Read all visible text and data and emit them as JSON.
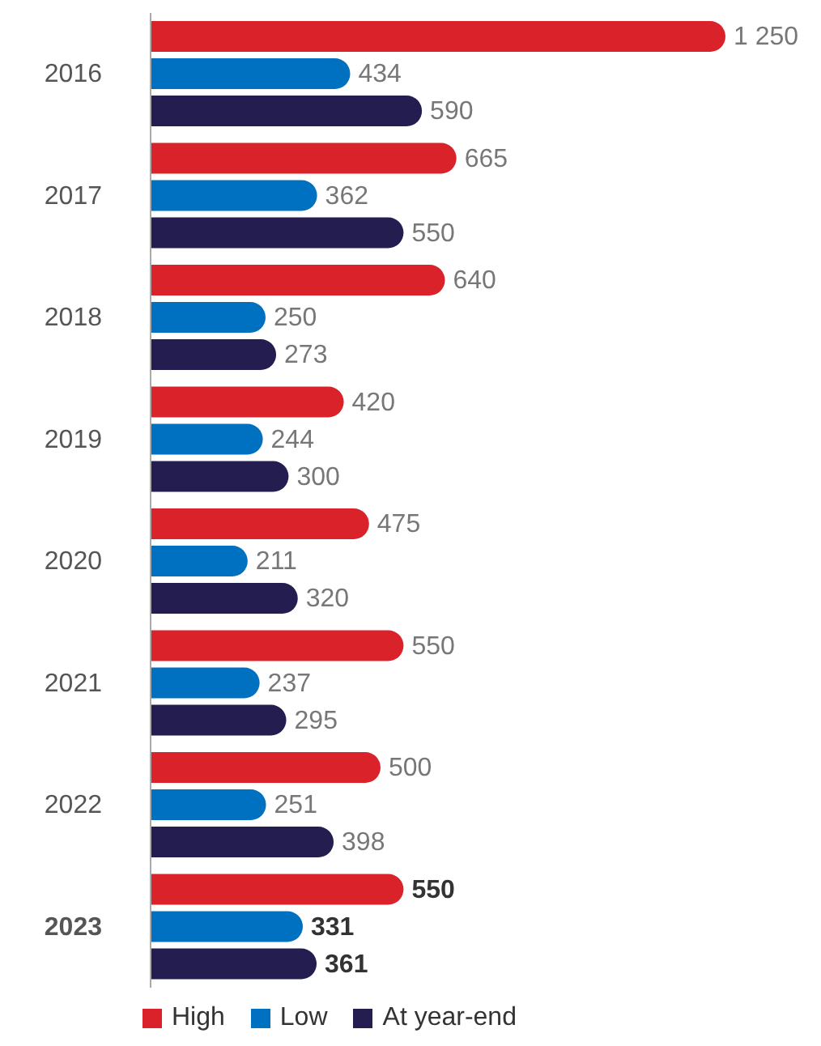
{
  "chart_data": {
    "type": "bar",
    "orientation": "horizontal",
    "categories": [
      "2016",
      "2017",
      "2018",
      "2019",
      "2020",
      "2021",
      "2022",
      "2023"
    ],
    "series": [
      {
        "name": "High",
        "color": "#d9222a",
        "values": [
          1250,
          665,
          640,
          420,
          475,
          550,
          500,
          550
        ],
        "value_labels": [
          "1 250",
          "665",
          "640",
          "420",
          "475",
          "550",
          "500",
          "550"
        ]
      },
      {
        "name": "Low",
        "color": "#0070c0",
        "values": [
          434,
          362,
          250,
          244,
          211,
          237,
          251,
          331
        ],
        "value_labels": [
          "434",
          "362",
          "250",
          "244",
          "211",
          "237",
          "251",
          "331"
        ]
      },
      {
        "name": "At year-end",
        "color": "#241d4f",
        "values": [
          590,
          550,
          273,
          300,
          320,
          295,
          398,
          361
        ],
        "value_labels": [
          "590",
          "550",
          "273",
          "300",
          "320",
          "295",
          "398",
          "361"
        ]
      }
    ],
    "legend": "bottom",
    "tick_labels": "y"
  }
}
